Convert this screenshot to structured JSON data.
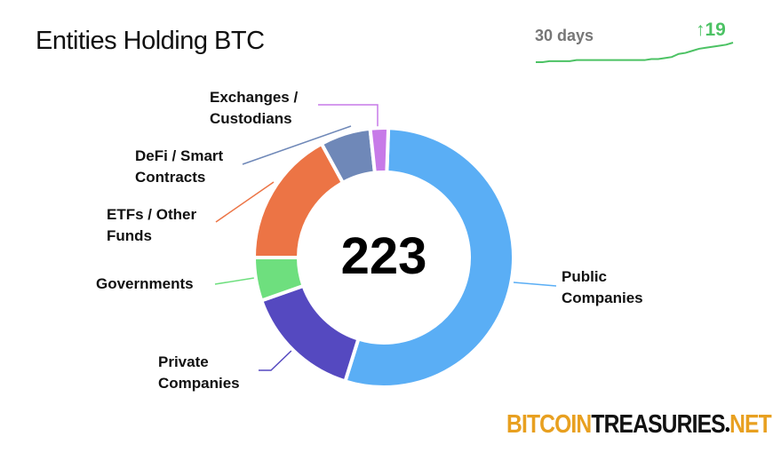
{
  "chart_data": {
    "type": "donut",
    "title": "Entities Holding BTC",
    "total": 223,
    "categories": [
      "Public Companies",
      "Private Companies",
      "Governments",
      "ETFs / Other Funds",
      "DeFi / Smart Contracts",
      "Exchanges / Custodians"
    ],
    "values": [
      121,
      33,
      12,
      38,
      14,
      5
    ],
    "colors": [
      "#5aaef5",
      "#5549c0",
      "#6edf7e",
      "#ec7445",
      "#6f88b8",
      "#c77ae8"
    ],
    "sparkline": {
      "label": "30 days",
      "change": "↑19",
      "color": "#4cc264",
      "values": [
        204,
        204,
        205,
        205,
        205,
        205,
        206,
        206,
        206,
        206,
        206,
        206,
        206,
        206,
        206,
        206,
        206,
        207,
        207,
        208,
        209,
        212,
        213,
        215,
        217,
        218,
        219,
        220,
        221,
        223
      ]
    }
  },
  "logo": {
    "parts": [
      "BITCOIN",
      "TREASURIES",
      "NET"
    ],
    "colors": [
      "#e8a020",
      "#111111",
      "#e8a020"
    ]
  }
}
